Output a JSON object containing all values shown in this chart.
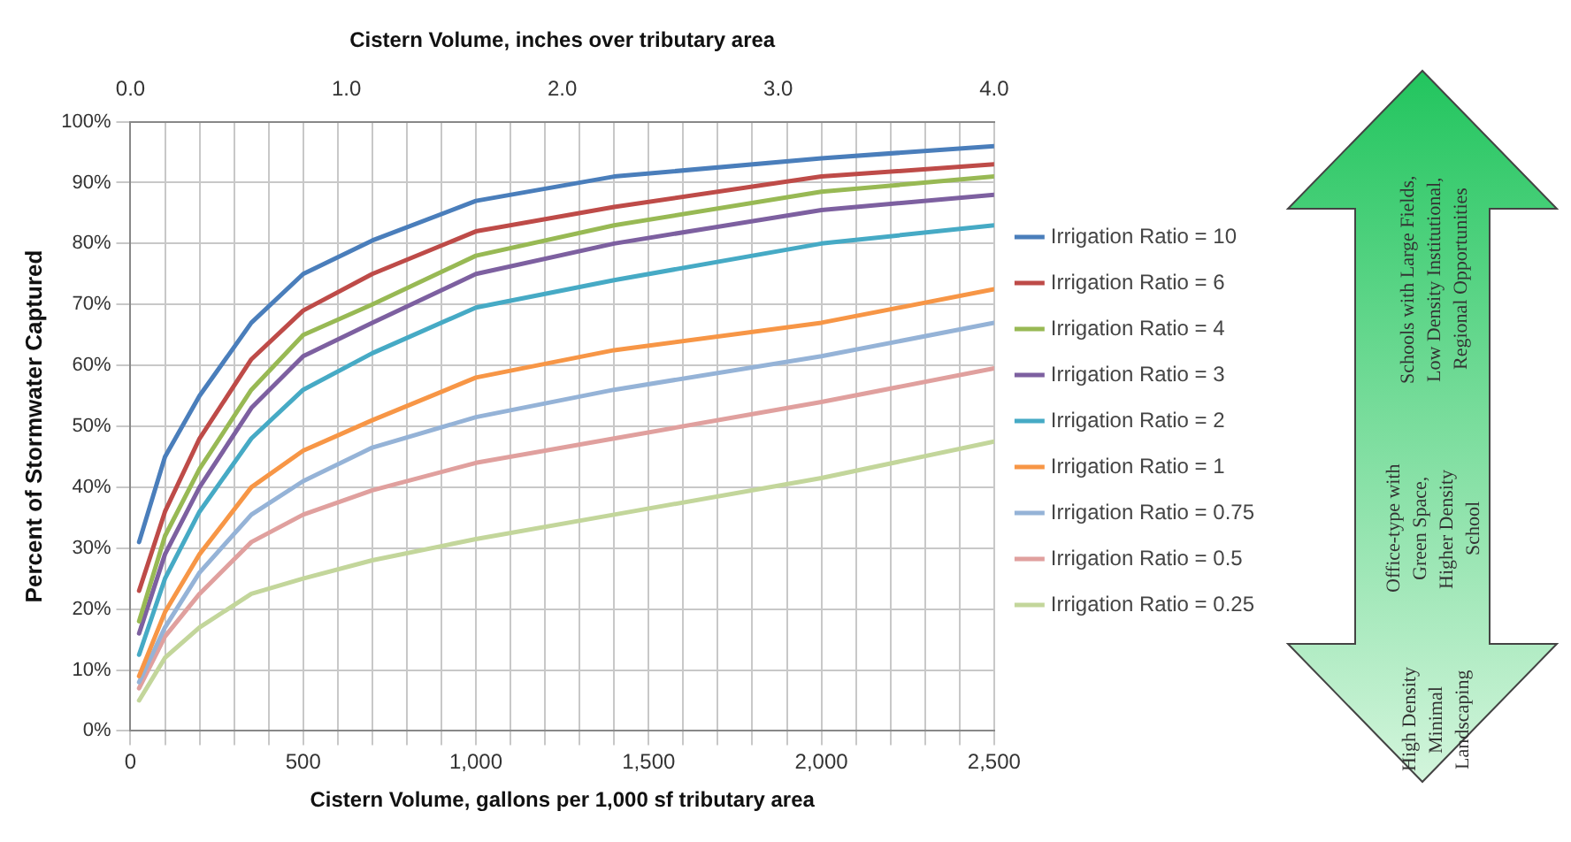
{
  "chart_data": {
    "type": "line",
    "xlabel": "Cistern Volume, gallons per 1,000 sf tributary area",
    "x2label": "Cistern Volume, inches over tributary area",
    "ylabel": "Percent of Stormwater Captured",
    "x": [
      25,
      100,
      200,
      350,
      500,
      700,
      1000,
      1400,
      2000,
      2500
    ],
    "series": [
      {
        "name": "Irrigation Ratio = 10",
        "color": "#4a7ebb",
        "values": [
          31,
          45,
          55,
          67,
          75,
          80.5,
          87,
          91,
          94,
          96
        ]
      },
      {
        "name": "Irrigation Ratio = 6",
        "color": "#be4b48",
        "values": [
          23,
          36,
          48,
          61,
          69,
          75,
          82,
          86,
          91,
          93
        ]
      },
      {
        "name": "Irrigation Ratio = 4",
        "color": "#98b954",
        "values": [
          18,
          32,
          43,
          56,
          65,
          70,
          78,
          83,
          88.5,
          91
        ]
      },
      {
        "name": "Irrigation Ratio = 3",
        "color": "#7d60a0",
        "values": [
          16,
          29,
          40,
          53,
          61.5,
          67,
          75,
          80,
          85.5,
          88
        ]
      },
      {
        "name": "Irrigation Ratio = 2",
        "color": "#46aac5",
        "values": [
          12.5,
          25,
          36,
          48,
          56,
          62,
          69.5,
          74,
          80,
          83
        ]
      },
      {
        "name": "Irrigation Ratio = 1",
        "color": "#f79646",
        "values": [
          9,
          19.5,
          29,
          40,
          46,
          51,
          58,
          62.5,
          67,
          72.5
        ]
      },
      {
        "name": "Irrigation Ratio = 0.75",
        "color": "#95b3d7",
        "values": [
          8,
          17,
          26,
          35.5,
          41,
          46.5,
          51.5,
          56,
          61.5,
          67
        ]
      },
      {
        "name": "Irrigation Ratio = 0.5",
        "color": "#e0a09e",
        "values": [
          7,
          15.5,
          22.5,
          31,
          35.5,
          39.5,
          44,
          48,
          54,
          59.5
        ]
      },
      {
        "name": "Irrigation Ratio = 0.25",
        "color": "#c3d69b",
        "values": [
          5,
          12,
          17,
          22.5,
          25,
          28,
          31.5,
          35.5,
          41.5,
          47.5
        ]
      }
    ],
    "xlim": [
      0,
      2500
    ],
    "xticks": [
      0,
      {
        "value": 100,
        "label": null
      },
      {
        "value": 200,
        "label": null
      },
      {
        "value": 300,
        "label": null
      },
      {
        "value": 400,
        "label": null
      },
      500,
      {
        "value": 600,
        "label": null
      },
      {
        "value": 700,
        "label": null
      },
      {
        "value": 800,
        "label": null
      },
      {
        "value": 900,
        "label": null
      },
      {
        "value": 1000,
        "label": "1,000"
      },
      {
        "value": 1100,
        "label": null
      },
      {
        "value": 1200,
        "label": null
      },
      {
        "value": 1300,
        "label": null
      },
      {
        "value": 1400,
        "label": null
      },
      {
        "value": 1500,
        "label": "1,500"
      },
      {
        "value": 1600,
        "label": null
      },
      {
        "value": 1700,
        "label": null
      },
      {
        "value": 1800,
        "label": null
      },
      {
        "value": 1900,
        "label": null
      },
      {
        "value": 2000,
        "label": "2,000"
      },
      {
        "value": 2100,
        "label": null
      },
      {
        "value": 2200,
        "label": null
      },
      {
        "value": 2300,
        "label": null
      },
      {
        "value": 2400,
        "label": null
      },
      {
        "value": 2500,
        "label": "2,500"
      }
    ],
    "x2lim": [
      0,
      4
    ],
    "x2ticks": [
      {
        "value": 0,
        "label": "0.0"
      },
      {
        "value": 1,
        "label": "1.0"
      },
      {
        "value": 2,
        "label": "2.0"
      },
      {
        "value": 3,
        "label": "3.0"
      },
      {
        "value": 4,
        "label": "4.0"
      }
    ],
    "ylim": [
      0,
      100
    ],
    "yticks": [
      {
        "value": 0,
        "label": "0%"
      },
      {
        "value": 10,
        "label": "10%"
      },
      {
        "value": 20,
        "label": "20%"
      },
      {
        "value": 30,
        "label": "30%"
      },
      {
        "value": 40,
        "label": "40%"
      },
      {
        "value": 50,
        "label": "50%"
      },
      {
        "value": 60,
        "label": "60%"
      },
      {
        "value": 70,
        "label": "70%"
      },
      {
        "value": 80,
        "label": "80%"
      },
      {
        "value": 90,
        "label": "90%"
      },
      {
        "value": 100,
        "label": "100%"
      }
    ],
    "grid": true,
    "legend": "right",
    "marker": "none",
    "line_style": "solid",
    "annotations": [
      "Schools with Large Fields, Low Density Institutional, Regional Opportunities",
      "Office-type with Green Space, Higher Density School",
      "High Density Minimal Landscaping"
    ]
  }
}
